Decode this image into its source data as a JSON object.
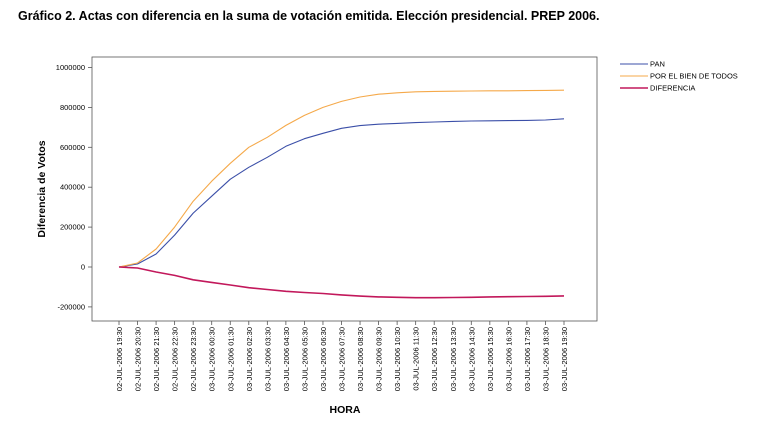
{
  "figure": {
    "title": "Gráfico 2. Actas con diferencia en la suma de votación emitida. Elección presidencial. PREP 2006."
  },
  "chart_data": {
    "type": "line",
    "xlabel": "HORA",
    "ylabel": "Diferencia de Votos",
    "ylim": [
      -260000,
      1050000
    ],
    "yticks": [
      -200000,
      0,
      200000,
      400000,
      600000,
      800000,
      1000000
    ],
    "ytick_labels": [
      "-200000",
      "0",
      "200000",
      "400000",
      "600000",
      "800000",
      "1000000"
    ],
    "categories": [
      "02-JUL-2006 19:30",
      "02-JUL-2006 20:30",
      "02-JUL-2006 21:30",
      "02-JUL-2006 22:30",
      "02-JUL-2006 23:30",
      "03-JUL-2006 00:30",
      "03-JUL-2006 01:30",
      "03-JUL-2006 02:30",
      "03-JUL-2006 03:30",
      "03-JUL-2006 04:30",
      "03-JUL-2006 05:30",
      "03-JUL-2006 06:30",
      "03-JUL-2006 07:30",
      "03-JUL-2006 08:30",
      "03-JUL-2006 09:30",
      "03-JUL-2006 10:30",
      "03-JUL-2006 11:30",
      "03-JUL-2006 12:30",
      "03-JUL-2006 13:30",
      "03-JUL-2006 14:30",
      "03-JUL-2006 15:30",
      "03-JUL-2006 16:30",
      "03-JUL-2006 17:30",
      "03-JUL-2006 18:30",
      "03-JUL-2006 19:30"
    ],
    "series": [
      {
        "name": "PAN",
        "color": "#3b4fa8",
        "values": [
          0,
          15000,
          65000,
          160000,
          270000,
          355000,
          440000,
          500000,
          550000,
          605000,
          643000,
          670000,
          695000,
          709000,
          716000,
          720000,
          724000,
          727000,
          730000,
          732000,
          733000,
          734000,
          735000,
          737000,
          743000
        ]
      },
      {
        "name": "POR EL BIEN DE TODOS",
        "color": "#f5a94a",
        "values": [
          0,
          20000,
          90000,
          200000,
          330000,
          430000,
          520000,
          600000,
          650000,
          710000,
          760000,
          800000,
          830000,
          852000,
          866000,
          873000,
          878000,
          880000,
          881000,
          882000,
          883000,
          883000,
          884000,
          885000,
          886000
        ]
      },
      {
        "name": "DIFERENCIA",
        "color": "#c2185b",
        "values": [
          0,
          -5000,
          -25000,
          -42000,
          -64000,
          -77000,
          -90000,
          -104000,
          -113000,
          -122000,
          -128000,
          -133000,
          -140000,
          -146000,
          -150000,
          -152000,
          -154000,
          -154000,
          -153000,
          -152000,
          -150000,
          -149000,
          -148000,
          -147000,
          -145000
        ]
      }
    ],
    "legend_position": "top-right",
    "grid": false
  }
}
